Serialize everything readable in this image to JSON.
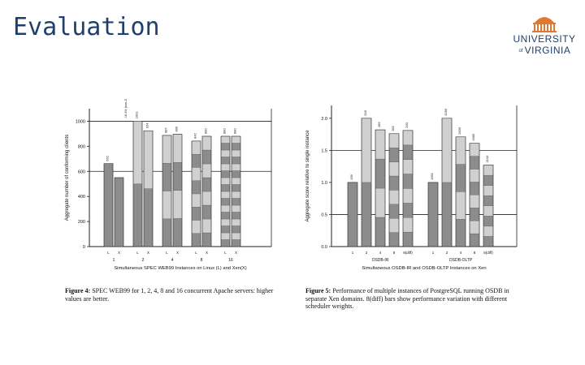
{
  "slide": {
    "title": "Evaluation"
  },
  "logo": {
    "line1": "UNIVERSITY",
    "of": "of",
    "line2": "VIRGINIA"
  },
  "figure4": {
    "caption_lead": "Figure 4:",
    "caption_text": "SPEC WEB99 for 1, 2, 4, 8 and 16 concurrent Apache servers: higher values are better.",
    "chart_data": {
      "type": "bar",
      "ylabel": "Aggregate number of conforming clients",
      "ylim": [
        0,
        1100
      ],
      "yticks": [
        "0",
        "200",
        "400",
        "600",
        "800",
        "1000"
      ],
      "ytick_values": [
        0,
        200,
        400,
        600,
        800,
        1000
      ],
      "reference_lines": [
        1000,
        600
      ],
      "xlabel": "Simultaneous SPEC WEB99 Instances on Linux (L) and Xen(X)",
      "groups": [
        {
          "label": "1",
          "bars": [
            {
              "label": "L",
              "value": 662,
              "top_label": "662",
              "segments": 1
            },
            {
              "label": "X",
              "value": 550,
              "segments": 1
            }
          ]
        },
        {
          "label": "2",
          "bars": [
            {
              "label": "L",
              "value": 1001,
              "top_label": "1001",
              "segments": 2
            },
            {
              "label": "X",
              "value": 924,
              "top_label": "924",
              "segments": 2
            }
          ]
        },
        {
          "label": "4",
          "bars": [
            {
              "label": "L",
              "value": 887,
              "top_label": "887",
              "segments": 4
            },
            {
              "label": "X",
              "value": 896,
              "top_label": "896",
              "segments": 4
            }
          ]
        },
        {
          "label": "8",
          "bars": [
            {
              "label": "L",
              "value": 842,
              "top_label": "842",
              "segments": 8
            },
            {
              "label": "X",
              "value": 880,
              "top_label": "880",
              "segments": 8
            }
          ]
        },
        {
          "label": "16",
          "bars": [
            {
              "label": "L",
              "value": 880,
              "top_label": "880",
              "segments": 16
            },
            {
              "label": "X",
              "value": 880,
              "top_label": "880",
              "segments": 16
            }
          ]
        }
      ],
      "annotations": [
        "-16.3% (non-SMP guest)"
      ]
    }
  },
  "figure5": {
    "caption_lead": "Figure 5:",
    "caption_text": "Performance of multiple instances of PostgreSQL running OSDB in separate Xen domains. 8(diff) bars show performance variation with different scheduler weights.",
    "chart_data": {
      "type": "bar",
      "ylabel": "Aggregate score relative to single instance",
      "ylim": [
        0,
        2.2
      ],
      "yticks": [
        "0.0",
        "0.5",
        "1.0",
        "1.5",
        "2.0"
      ],
      "ytick_values": [
        0,
        0.5,
        1.0,
        1.5,
        2.0
      ],
      "reference_lines": [
        1.5,
        0.5
      ],
      "xlabel": "Simultaneous OSDB-IR and OSDB-OLTP Instances on Xen",
      "groups": [
        {
          "label": "OSDB-IR",
          "bars": [
            {
              "label": "1",
              "value": 1.0,
              "top_label": "158",
              "segments": 1
            },
            {
              "label": "2",
              "value": 2.0,
              "top_label": "318",
              "segments": 2
            },
            {
              "label": "4",
              "value": 1.82,
              "top_label": "289",
              "segments": 4
            },
            {
              "label": "8",
              "value": 1.76,
              "top_label": "282",
              "segments": 8
            },
            {
              "label": "8(diff)",
              "value": 1.81,
              "top_label": "290",
              "segments": 8
            }
          ]
        },
        {
          "label": "OSDB-OLTP",
          "bars": [
            {
              "label": "1",
              "value": 1.0,
              "top_label": "1661",
              "segments": 1
            },
            {
              "label": "2",
              "value": 2.0,
              "top_label": "3289",
              "segments": 2
            },
            {
              "label": "4",
              "value": 1.71,
              "top_label": "2833",
              "segments": 4
            },
            {
              "label": "8",
              "value": 1.61,
              "top_label": "2685",
              "segments": 8
            },
            {
              "label": "8(diff)",
              "value": 1.27,
              "top_label": "2104",
              "segments": 8
            }
          ]
        }
      ]
    }
  },
  "colors": {
    "dark": "#8c8c8c",
    "light": "#d0d0d0",
    "axis": "#222222",
    "title": "#1f3f6e",
    "logo": "#1f3f6e",
    "rotunda": "#e0792f"
  }
}
